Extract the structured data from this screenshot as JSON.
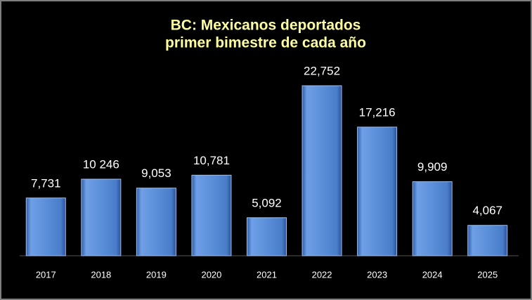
{
  "chart_data": {
    "type": "bar",
    "title": "BC: Mexicanos deportados",
    "subtitle": "primer bimestre de cada año",
    "categories": [
      "2017",
      "2018",
      "2019",
      "2020",
      "2021",
      "2022",
      "2023",
      "2024",
      "2025"
    ],
    "values": [
      7731,
      10246,
      9053,
      10781,
      5092,
      22752,
      17216,
      9909,
      4067
    ],
    "value_labels": [
      "7,731",
      "10 246",
      "9,053",
      "10,781",
      "5,092",
      "22,752",
      "17,216",
      "9,909",
      "4,067"
    ],
    "color": "#5b8fd8"
  }
}
